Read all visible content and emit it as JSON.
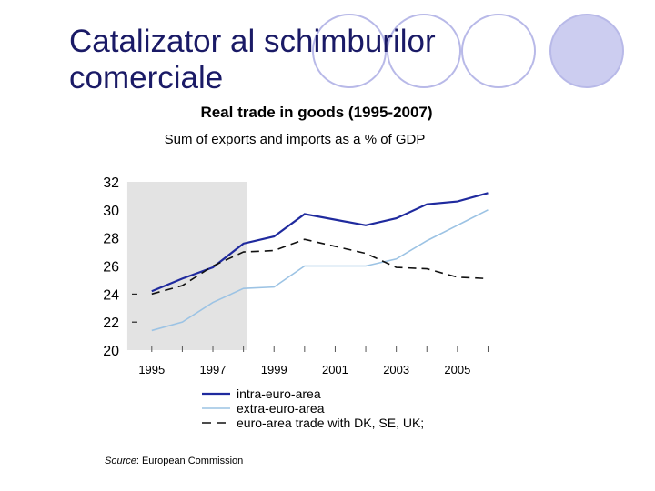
{
  "slide": {
    "title_line1": "Catalizator al schimburilor",
    "title_line2": "comerciale",
    "source_label": "Source",
    "source_text": ": European Commission"
  },
  "colors": {
    "title": "#1a1a66",
    "decor_circle_fill": "#cccdf0",
    "decor_circle_stroke": "#b8b9e8",
    "shade": "#e3e3e3",
    "intra": "#1f2a9e",
    "extra": "#9cc3e4",
    "dk": "#111111"
  },
  "chart_data": {
    "type": "line",
    "title": "Real trade in goods (1995-2007)",
    "subtitle": "Sum of exports and imports as a % of GDP",
    "x": [
      1995,
      1996,
      1997,
      1998,
      1999,
      2000,
      2001,
      2002,
      2003,
      2004,
      2005,
      2006
    ],
    "xlim": [
      1994.5,
      2006.7
    ],
    "x_ticks": [
      "1995",
      "1997",
      "1999",
      "2001",
      "2003",
      "2005"
    ],
    "y_ticks": [
      "32",
      "30",
      "28",
      "26",
      "24",
      "22",
      "20"
    ],
    "ylim": [
      20,
      32
    ],
    "shaded_x_range": [
      1994.2,
      1998.1
    ],
    "series": [
      {
        "name": "intra-euro-area",
        "style": "solid",
        "values": [
          24.2,
          25.1,
          25.9,
          27.6,
          28.1,
          29.7,
          29.3,
          28.9,
          29.4,
          30.4,
          30.6,
          31.2
        ]
      },
      {
        "name": "extra-euro-area",
        "style": "solid",
        "values": [
          21.4,
          22.0,
          23.4,
          24.4,
          24.5,
          26.0,
          26.0,
          26.0,
          26.5,
          27.8,
          28.9,
          30.0
        ]
      },
      {
        "name": "euro-area trade with DK, SE, UK;",
        "style": "dashed",
        "values": [
          24.0,
          24.6,
          26.0,
          27.0,
          27.1,
          27.9,
          27.4,
          26.9,
          25.9,
          25.8,
          25.2,
          25.1
        ]
      }
    ]
  }
}
